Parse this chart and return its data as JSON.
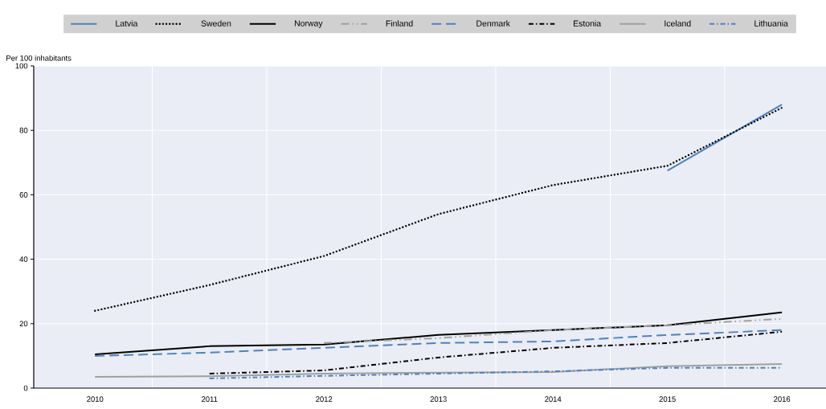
{
  "chart_data": {
    "type": "line",
    "ylabel": "Per 100 inhabitants",
    "categories": [
      "2010",
      "2011",
      "2012",
      "2013",
      "2014",
      "2015",
      "2016"
    ],
    "series": [
      {
        "name": "Latvia",
        "color": "#4f81bd",
        "line_style": "solid",
        "values": [
          null,
          null,
          null,
          null,
          null,
          67.5,
          88
        ]
      },
      {
        "name": "Sweden",
        "color": "#000000",
        "line_style": "dotted",
        "values": [
          24,
          32,
          41,
          54,
          63,
          69,
          87
        ]
      },
      {
        "name": "Norway",
        "color": "#000000",
        "line_style": "solid",
        "values": [
          10.5,
          13,
          13.5,
          16.5,
          18,
          19.5,
          23.5
        ]
      },
      {
        "name": "Finland",
        "color": "#a0a0a0",
        "line_style": "dashdotdot",
        "values": [
          null,
          null,
          14,
          15.5,
          18,
          19.5,
          21.5
        ]
      },
      {
        "name": "Denmark",
        "color": "#4f81bd",
        "line_style": "dashed",
        "values": [
          10,
          11,
          12.5,
          14,
          14.5,
          16.5,
          18
        ]
      },
      {
        "name": "Estonia",
        "color": "#000000",
        "line_style": "dashdot",
        "values": [
          null,
          4.5,
          5.5,
          9.5,
          12.5,
          14,
          17.5
        ]
      },
      {
        "name": "Iceland",
        "color": "#a0a0a0",
        "line_style": "solid",
        "values": [
          3.5,
          3.7,
          4.5,
          4.8,
          5,
          6.8,
          7.5
        ]
      },
      {
        "name": "Lithuania",
        "color": "#4f81bd",
        "line_style": "dashdot",
        "values": [
          null,
          3,
          3.8,
          4.5,
          5.2,
          6.3,
          6.3
        ]
      }
    ],
    "ylim": [
      0,
      100
    ],
    "yticks": [
      0,
      20,
      40,
      60,
      80,
      100
    ],
    "grid": true,
    "legend": "top"
  }
}
